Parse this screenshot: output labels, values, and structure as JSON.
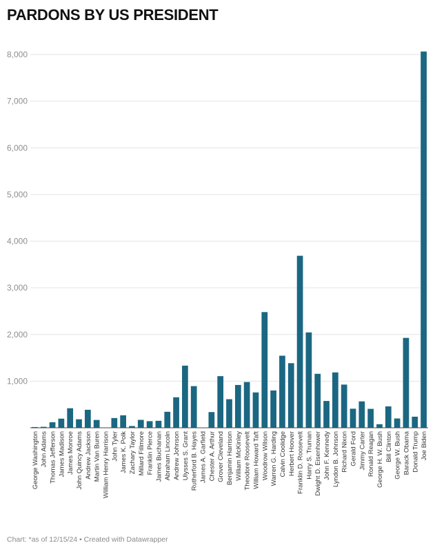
{
  "chart_data": {
    "type": "bar",
    "title": "PARDONS BY US PRESIDENT",
    "footer": "Chart: *as of 12/15/24 • Created with Datawrapper",
    "bar_color": "#1b6782",
    "grid": true,
    "ylim": [
      0,
      8000
    ],
    "y_ticks": [
      1000,
      2000,
      3000,
      4000,
      5000,
      6000,
      7000,
      8000
    ],
    "y_tick_labels": [
      "1,000",
      "2,000",
      "3,000",
      "4,000",
      "5,000",
      "6,000",
      "7,000",
      "8,000"
    ],
    "categories": [
      "George Washington",
      "John Adams",
      "Thomas Jefferson",
      "James Madison",
      "James Monroe",
      "John Quincy Adams",
      "Andrew Jackson",
      "Martin Van Buren",
      "William Henry Harrison",
      "John Tyler",
      "James K. Polk",
      "Zachary Taylor",
      "Millard Fillmore",
      "Franklin Pierce",
      "James Buchanan",
      "Abraham Lincoln",
      "Andrew Johnson",
      "Ulysses S. Grant",
      "Rutherford B. Hayes",
      "James A. Garfield",
      "Chester A. Arthur",
      "Grover Cleveland",
      "Benjamin Harrison",
      "William McKinley",
      "Theodore Roosevelt",
      "William Howard Taft",
      "Woodrow Wilson",
      "Warren G. Harding",
      "Calvin Coolidge",
      "Herbert Hoover",
      "Franklin D. Roosevelt",
      "Harry S. Truman",
      "Dwight D. Eisenhower",
      "John F. Kennedy",
      "Lyndon B. Johnson",
      "Richard Nixon",
      "Gerald Ford",
      "Jimmy Carter",
      "Ronald Reagan",
      "George H. W. Bush",
      "Bill Clinton",
      "George W. Bush",
      "Barack Obama",
      "Donald Trump",
      "Joe Biden"
    ],
    "values": [
      16,
      21,
      119,
      196,
      419,
      183,
      386,
      168,
      0,
      209,
      268,
      38,
      170,
      142,
      150,
      343,
      654,
      1332,
      893,
      0,
      337,
      1107,
      613,
      918,
      981,
      758,
      2480,
      800,
      1545,
      1385,
      3687,
      2044,
      1157,
      575,
      1187,
      926,
      409,
      566,
      406,
      77,
      459,
      200,
      1927,
      238,
      8064
    ]
  }
}
